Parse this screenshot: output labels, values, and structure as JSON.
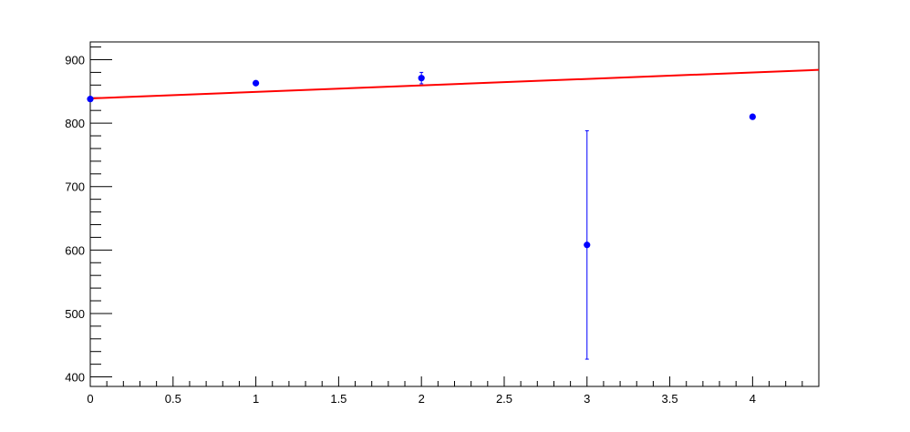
{
  "chart_data": {
    "type": "scatter",
    "title": "",
    "xlabel": "",
    "ylabel": "",
    "xlim": [
      0,
      4.4
    ],
    "ylim": [
      385,
      928
    ],
    "grid": false,
    "x_major_ticks": [
      0,
      0.5,
      1,
      1.5,
      2,
      2.5,
      3,
      3.5,
      4
    ],
    "x_tick_labels": [
      "0",
      "0.5",
      "1",
      "1.5",
      "2",
      "2.5",
      "3",
      "3.5",
      "4"
    ],
    "y_major_ticks": [
      400,
      500,
      600,
      700,
      800,
      900
    ],
    "y_tick_labels": [
      "400",
      "500",
      "600",
      "700",
      "800",
      "900"
    ],
    "series": [
      {
        "kind": "points-with-error-bars",
        "color": "#0000ff",
        "points": [
          {
            "x": 0,
            "y": 838,
            "err": 2
          },
          {
            "x": 1,
            "y": 863,
            "err": 3
          },
          {
            "x": 2,
            "y": 871,
            "err": 9
          },
          {
            "x": 3,
            "y": 608,
            "err": 180
          },
          {
            "x": 4,
            "y": 810,
            "err": 3
          }
        ]
      },
      {
        "kind": "fit-line",
        "color": "#ff0000",
        "x": [
          0,
          4.4
        ],
        "y": [
          839,
          884
        ]
      }
    ]
  }
}
